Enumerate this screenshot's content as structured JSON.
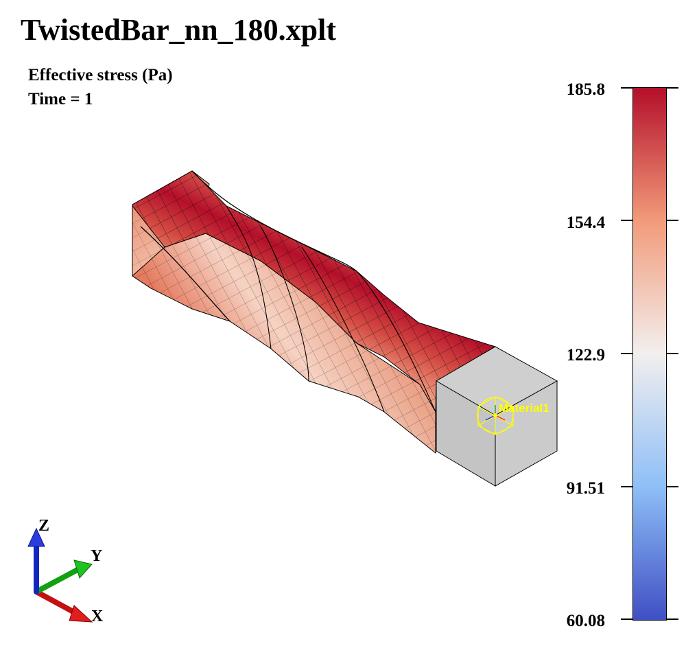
{
  "window": {
    "title": "TwistedBar_nn_180.xplt"
  },
  "plot_info": {
    "variable": "Effective stress (Pa)",
    "time": "Time = 1"
  },
  "colorbar": {
    "ticks": [
      "185.8",
      "154.4",
      "122.9",
      "91.51",
      "60.08"
    ],
    "colors": [
      "#b40f2a",
      "#f29b7a",
      "#f2efee",
      "#8ebff7",
      "#3f4fc4"
    ]
  },
  "model": {
    "material_label": "Material1",
    "end_face_color": "#c8c8c8"
  },
  "triad": {
    "x_label": "X",
    "y_label": "Y",
    "z_label": "Z",
    "x_color": "#c41010",
    "y_color": "#12a012",
    "z_color": "#1027c0"
  }
}
